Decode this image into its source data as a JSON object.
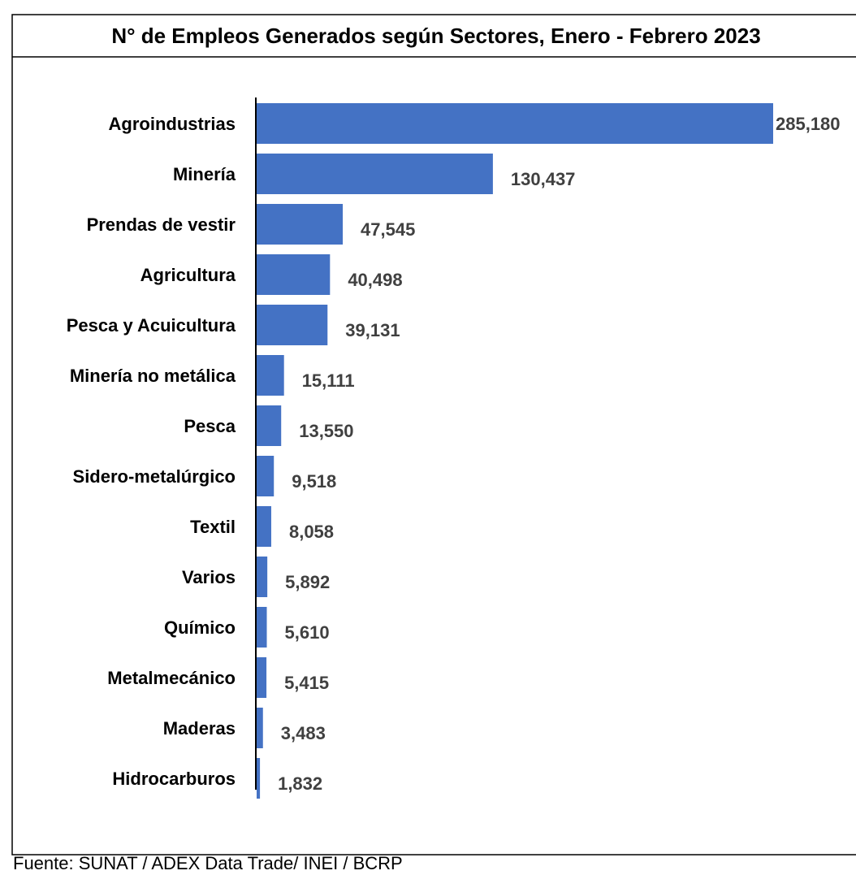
{
  "chart_data": {
    "type": "bar",
    "orientation": "horizontal",
    "title": "N° de Empleos Generados según Sectores, Enero - Febrero 2023",
    "categories": [
      "Agroindustrias",
      "Minería",
      "Prendas de vestir",
      "Agricultura",
      "Pesca y Acuicultura",
      "Minería no metálica",
      "Pesca",
      "Sidero-metalúrgico",
      "Textil",
      "Varios",
      "Químico",
      "Metalmecánico",
      "Maderas",
      "Hidrocarburos"
    ],
    "values": [
      285180,
      130437,
      47545,
      40498,
      39131,
      15111,
      13550,
      9518,
      8058,
      5892,
      5610,
      5415,
      3483,
      1832
    ],
    "value_labels": [
      "285,180",
      "130,437",
      "47,545",
      "40,498",
      "39,131",
      "15,111",
      "13,550",
      "9,518",
      "8,058",
      "5,892",
      "5,610",
      "5,415",
      "3,483",
      "1,832"
    ],
    "color": "#4472c4",
    "source": "Fuente: SUNAT / ADEX Data Trade/ INEI / BCRP"
  }
}
